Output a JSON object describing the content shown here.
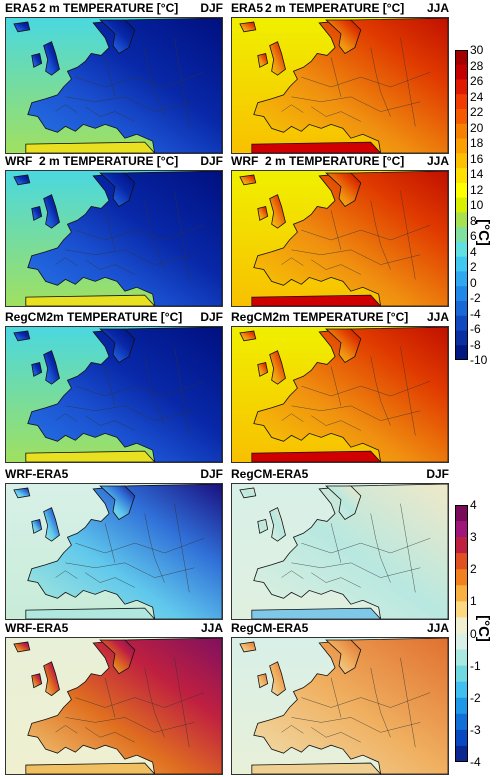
{
  "panels": [
    {
      "id": "p1",
      "left": "ERA5",
      "center": "2 m TEMPERATURE [°C]",
      "right": "DJF",
      "type": "temp",
      "season": "DJF"
    },
    {
      "id": "p2",
      "left": "ERA5",
      "center": "2 m TEMPERATURE [°C]",
      "right": "JJA",
      "type": "temp",
      "season": "JJA"
    },
    {
      "id": "p3",
      "left": "WRF",
      "center": "2 m TEMPERATURE [°C]",
      "right": "DJF",
      "type": "temp",
      "season": "DJF"
    },
    {
      "id": "p4",
      "left": "WRF",
      "center": "2 m TEMPERATURE [°C]",
      "right": "JJA",
      "type": "temp",
      "season": "JJA"
    },
    {
      "id": "p5",
      "left": "RegCM2",
      "center": "m TEMPERATURE [°C]",
      "right": "DJF",
      "type": "temp",
      "season": "DJF"
    },
    {
      "id": "p6",
      "left": "RegCM2",
      "center": "m TEMPERATURE [°C]",
      "right": "JJA",
      "type": "temp",
      "season": "JJA"
    },
    {
      "id": "p7",
      "left": "WRF-ERA5",
      "center": "",
      "right": "DJF",
      "type": "diff",
      "season": "DJF",
      "variant": "wrf"
    },
    {
      "id": "p8",
      "left": "RegCM-ERA5",
      "center": "",
      "right": "DJF",
      "type": "diff",
      "season": "DJF",
      "variant": "regcm"
    },
    {
      "id": "p9",
      "left": "WRF-ERA5",
      "center": "",
      "right": "JJA",
      "type": "diff",
      "season": "JJA",
      "variant": "wrf"
    },
    {
      "id": "p10",
      "left": "RegCM-ERA5",
      "center": "",
      "right": "JJA",
      "type": "diff",
      "season": "JJA",
      "variant": "regcm"
    }
  ],
  "colorbar_temp": {
    "unit": "[°C]",
    "ticks": [
      "30",
      "28",
      "26",
      "24",
      "22",
      "20",
      "18",
      "16",
      "14",
      "12",
      "10",
      "8",
      "6",
      "4",
      "2",
      "0",
      "-2",
      "-4",
      "-6",
      "-8",
      "-10"
    ],
    "colors": [
      "#a50000",
      "#c40000",
      "#e01a00",
      "#f03c00",
      "#f55a00",
      "#f88000",
      "#fba000",
      "#fdc000",
      "#ffe000",
      "#ffff00",
      "#d8f000",
      "#a8e050",
      "#80e0a0",
      "#60e0e0",
      "#40c8f0",
      "#30a8f0",
      "#2088e8",
      "#1868d8",
      "#1048c0",
      "#0830a0",
      "#001880"
    ]
  },
  "colorbar_diff": {
    "unit": "[°C]",
    "ticks": [
      "4",
      "3",
      "2",
      "1",
      "0",
      "-1",
      "-2",
      "-3",
      "-4"
    ],
    "colors": [
      "#7a0a5a",
      "#a0157a",
      "#c02040",
      "#e05020",
      "#f08020",
      "#f8b040",
      "#fcd880",
      "#f0f0d0",
      "#d8f0e8",
      "#a8e8e0",
      "#70d8e0",
      "#40c0f0",
      "#2098e8",
      "#1070d8",
      "#0848c0",
      "#0a2890"
    ]
  },
  "chart_data": [
    {
      "type": "heatmap",
      "title": "ERA5 2 m TEMPERATURE [°C] DJF",
      "ylim": [
        -10,
        30
      ]
    },
    {
      "type": "heatmap",
      "title": "ERA5 2 m TEMPERATURE [°C] JJA",
      "ylim": [
        -10,
        30
      ]
    },
    {
      "type": "heatmap",
      "title": "WRF 2 m TEMPERATURE [°C] DJF",
      "ylim": [
        -10,
        30
      ]
    },
    {
      "type": "heatmap",
      "title": "WRF 2 m TEMPERATURE [°C] JJA",
      "ylim": [
        -10,
        30
      ]
    },
    {
      "type": "heatmap",
      "title": "RegCM2 m TEMPERATURE [°C] DJF",
      "ylim": [
        -10,
        30
      ]
    },
    {
      "type": "heatmap",
      "title": "RegCM2 m TEMPERATURE [°C] JJA",
      "ylim": [
        -10,
        30
      ]
    },
    {
      "type": "heatmap",
      "title": "WRF-ERA5 DJF",
      "ylim": [
        -4,
        4
      ]
    },
    {
      "type": "heatmap",
      "title": "RegCM-ERA5 DJF",
      "ylim": [
        -4,
        4
      ]
    },
    {
      "type": "heatmap",
      "title": "WRF-ERA5 JJA",
      "ylim": [
        -4,
        4
      ]
    },
    {
      "type": "heatmap",
      "title": "RegCM-ERA5 JJA",
      "ylim": [
        -4,
        4
      ]
    }
  ]
}
